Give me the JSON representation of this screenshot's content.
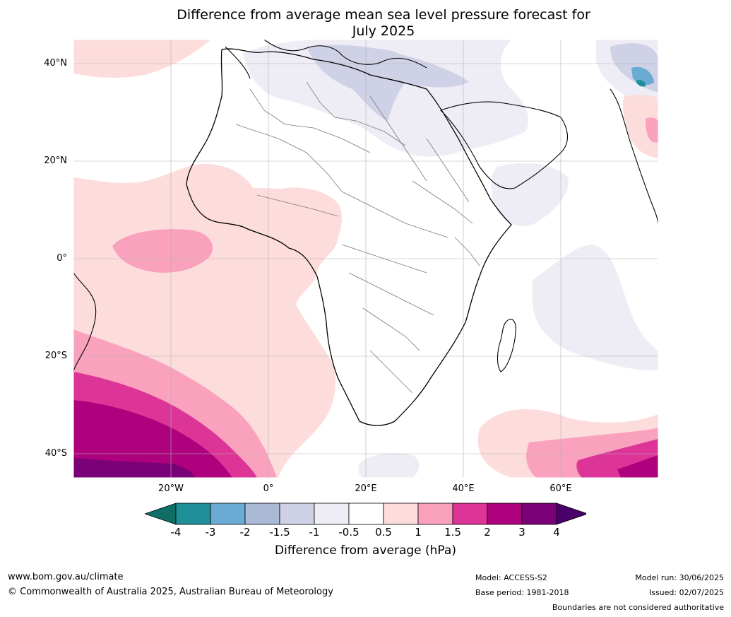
{
  "title_line1": "Difference from average mean sea level pressure forecast for",
  "title_line2": "July 2025",
  "lat_labels": [
    "40°N",
    "20°N",
    "0°",
    "20°S",
    "40°S"
  ],
  "lon_labels": [
    "20°W",
    "0°",
    "20°E",
    "40°E",
    "60°E"
  ],
  "map_extent": {
    "lon_min": -40,
    "lon_max": 80,
    "lat_min": -45,
    "lat_max": 45
  },
  "colorbar": {
    "ticks": [
      "-4",
      "-3",
      "-2",
      "-1.5",
      "-1",
      "-0.5",
      "0.5",
      "1",
      "1.5",
      "2",
      "3",
      "4"
    ],
    "colors": [
      "#0f6e66",
      "#1f8f99",
      "#6aaad3",
      "#a9b9d6",
      "#cfd1e6",
      "#eeecf4",
      "#ffffff",
      "#fddcdc",
      "#f9a1bd",
      "#dd3497",
      "#ae017e",
      "#7a0177",
      "#49006a"
    ],
    "label": "Difference from average (hPa)"
  },
  "footer": {
    "url": "www.bom.gov.au/climate",
    "copyright": "© Commonwealth of Australia 2025, Australian Bureau of Meteorology",
    "model": "Model: ACCESS-S2",
    "base_period": "Base period: 1981-2018",
    "model_run": "Model run: 30/06/2025",
    "issued": "Issued: 02/07/2025",
    "disclaimer": "Boundaries are not considered authoritative"
  }
}
